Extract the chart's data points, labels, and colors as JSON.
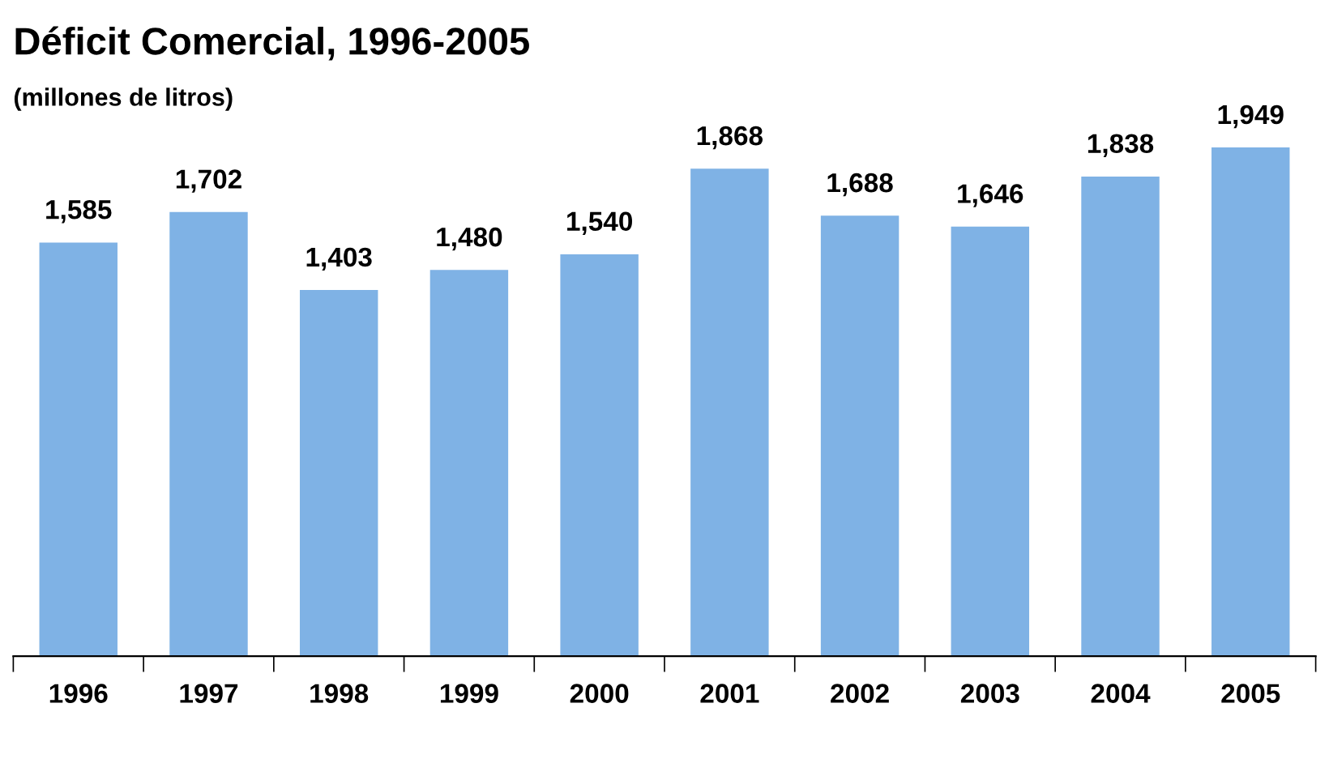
{
  "chart_data": {
    "type": "bar",
    "title": "Déficit Comercial, 1996-2005",
    "subtitle": "(millones de litros)",
    "categories": [
      "1996",
      "1997",
      "1998",
      "1999",
      "2000",
      "2001",
      "2002",
      "2003",
      "2004",
      "2005"
    ],
    "values": [
      1585,
      1702,
      1403,
      1480,
      1540,
      1868,
      1688,
      1646,
      1838,
      1949
    ],
    "value_labels": [
      "1,585",
      "1,702",
      "1,403",
      "1,480",
      "1,540",
      "1,868",
      "1,688",
      "1,646",
      "1,838",
      "1,949"
    ],
    "color": "#7fb2e5",
    "tick_labels": "x",
    "grid": false,
    "legend": false
  }
}
